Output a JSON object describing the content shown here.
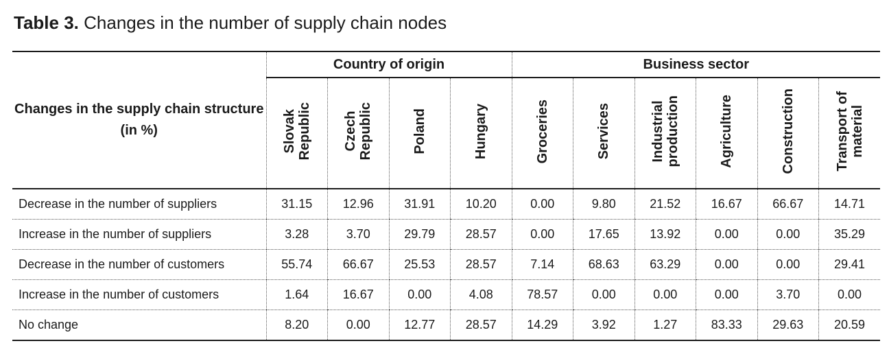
{
  "caption": {
    "label": "Table 3.",
    "text": "Changes in the number of supply chain nodes"
  },
  "table": {
    "stub_header": "Changes in the supply chain structure (in %)",
    "groups": [
      "Country of origin",
      "Business sector"
    ],
    "columns": [
      "Slovak\nRepublic",
      "Czech\nRepublic",
      "Poland",
      "Hungary",
      "Groceries",
      "Services",
      "Industrial\nproduction",
      "Agriculture",
      "Construction",
      "Transport of\nmaterial"
    ],
    "rows": [
      {
        "label": "Decrease in the number of suppliers",
        "values": [
          "31.15",
          "12.96",
          "31.91",
          "10.20",
          "0.00",
          "9.80",
          "21.52",
          "16.67",
          "66.67",
          "14.71"
        ]
      },
      {
        "label": "Increase in the number of suppliers",
        "values": [
          "3.28",
          "3.70",
          "29.79",
          "28.57",
          "0.00",
          "17.65",
          "13.92",
          "0.00",
          "0.00",
          "35.29"
        ]
      },
      {
        "label": "Decrease in the number of customers",
        "values": [
          "55.74",
          "66.67",
          "25.53",
          "28.57",
          "7.14",
          "68.63",
          "63.29",
          "0.00",
          "0.00",
          "29.41"
        ]
      },
      {
        "label": "Increase in the number of customers",
        "values": [
          "1.64",
          "16.67",
          "0.00",
          "4.08",
          "78.57",
          "0.00",
          "0.00",
          "0.00",
          "3.70",
          "0.00"
        ]
      },
      {
        "label": "No change",
        "values": [
          "8.20",
          "0.00",
          "12.77",
          "28.57",
          "14.29",
          "3.92",
          "1.27",
          "83.33",
          "29.63",
          "20.59"
        ]
      }
    ]
  }
}
